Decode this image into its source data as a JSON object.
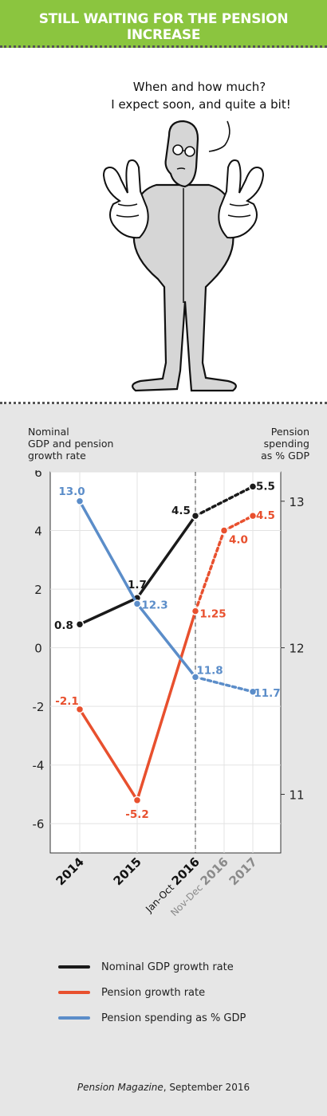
{
  "header": {
    "title": "STILL WAITING FOR THE PENSION INCREASE"
  },
  "cartoon": {
    "speech_line1": "When and how much?",
    "speech_line2": "I expect soon, and quite a bit!"
  },
  "colors": {
    "banner": "#8bc53f",
    "gdp": "#1a1a1a",
    "pension": "#e8502e",
    "spending": "#5b8dc9",
    "panel": "#e6e6e6"
  },
  "chart_data": {
    "type": "line",
    "left_axis_label": [
      "Nominal",
      "GDP and pension",
      "growth rate"
    ],
    "right_axis_label": [
      "Pension",
      "spending",
      "as % GDP"
    ],
    "left_ylim": [
      -7,
      6
    ],
    "left_ticks": [
      "6",
      "4",
      "2",
      "0",
      "-2",
      "-4",
      "-6"
    ],
    "left_tick_values": [
      6,
      4,
      2,
      0,
      -2,
      -4,
      -6
    ],
    "right_ylim": [
      10.6,
      13.2
    ],
    "right_ticks": [
      "13",
      "12",
      "11"
    ],
    "right_tick_values": [
      13,
      12,
      11
    ],
    "categories": [
      {
        "label": "2014",
        "bold": true
      },
      {
        "label": "2015",
        "bold": true
      },
      {
        "label": "Jan-Oct 2016",
        "prefix": "Jan-Oct ",
        "main": "2016",
        "bold": true
      },
      {
        "label": "Nov-Dec 2016",
        "prefix": "Nov-Dec ",
        "main": "2016",
        "bold": true,
        "grey": true
      },
      {
        "label": "2017",
        "bold": true,
        "grey": true
      }
    ],
    "divider_after_index": 2,
    "series": [
      {
        "name": "Nominal GDP growth rate",
        "axis": "left",
        "color": "#1a1a1a",
        "points": [
          {
            "x": 0,
            "y": 0.8,
            "label": "0.8"
          },
          {
            "x": 1,
            "y": 1.7,
            "label": "1.7"
          },
          {
            "x": 2,
            "y": 4.5,
            "label": "4.5"
          },
          {
            "x": 4,
            "y": 5.5,
            "label": "5.5"
          }
        ],
        "dashed_from_index": 2
      },
      {
        "name": "Pension growth rate",
        "axis": "left",
        "color": "#e8502e",
        "points": [
          {
            "x": 0,
            "y": -2.1,
            "label": "-2.1"
          },
          {
            "x": 1,
            "y": -5.2,
            "label": "-5.2"
          },
          {
            "x": 2,
            "y": 1.25,
            "label": "1.25"
          },
          {
            "x": 3,
            "y": 4.0,
            "label": "4.0"
          },
          {
            "x": 4,
            "y": 4.5,
            "label": "4.5"
          }
        ],
        "dashed_from_index": 2
      },
      {
        "name": "Pension spending as % GDP",
        "axis": "right",
        "color": "#5b8dc9",
        "points": [
          {
            "x": 0,
            "y": 13.0,
            "label": "13.0"
          },
          {
            "x": 1,
            "y": 12.3,
            "label": "12.3"
          },
          {
            "x": 2,
            "y": 11.8,
            "label": "11.8"
          },
          {
            "x": 4,
            "y": 11.7,
            "label": "11.7"
          }
        ],
        "dashed_from_index": 2
      }
    ]
  },
  "footer": {
    "source_name": "Pension Magazine",
    "source_date": ", September 2016"
  }
}
